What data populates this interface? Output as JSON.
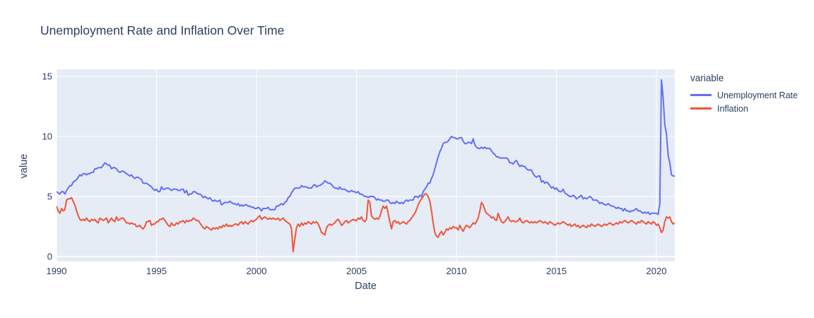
{
  "title": "Unemployment Rate and Inflation Over Time",
  "x_axis": {
    "title": "Date",
    "ticks": [
      1990,
      1995,
      2000,
      2005,
      2010,
      2015,
      2020
    ]
  },
  "y_axis": {
    "title": "value",
    "ticks": [
      0,
      5,
      10,
      15
    ]
  },
  "legend": {
    "title": "variable",
    "entries": [
      {
        "label": "Unemployment Rate",
        "color": "#636EFA"
      },
      {
        "label": "Inflation",
        "color": "#EF553B"
      }
    ]
  },
  "style": {
    "plot_bg": "#E5ECF6",
    "grid_color": "#FFFFFF",
    "text_color": "#2a3f5f",
    "paper_bg": "#FFFFFF"
  },
  "chart_data": {
    "type": "line",
    "title": "Unemployment Rate and Inflation Over Time",
    "xlabel": "Date",
    "ylabel": "value",
    "x_start_year": 1990,
    "x_interval": "monthly",
    "x_end": "2020-12",
    "xlim": [
      1990,
      2020.917
    ],
    "ylim": [
      -0.41,
      15.59
    ],
    "grid": true,
    "legend_position": "right",
    "series": [
      {
        "name": "Unemployment Rate",
        "color": "#636EFA",
        "values": [
          5.4,
          5.3,
          5.2,
          5.4,
          5.4,
          5.2,
          5.5,
          5.7,
          5.9,
          5.9,
          6.2,
          6.3,
          6.4,
          6.6,
          6.8,
          6.7,
          6.9,
          6.9,
          6.8,
          6.9,
          6.9,
          7.0,
          7.0,
          7.3,
          7.3,
          7.4,
          7.4,
          7.4,
          7.6,
          7.8,
          7.7,
          7.6,
          7.6,
          7.3,
          7.4,
          7.4,
          7.3,
          7.1,
          7.0,
          7.1,
          7.1,
          7.0,
          6.9,
          6.8,
          6.7,
          6.8,
          6.6,
          6.5,
          6.6,
          6.6,
          6.5,
          6.4,
          6.1,
          6.1,
          6.1,
          6.0,
          5.9,
          5.8,
          5.6,
          5.5,
          5.6,
          5.4,
          5.4,
          5.8,
          5.6,
          5.6,
          5.7,
          5.7,
          5.6,
          5.5,
          5.6,
          5.6,
          5.6,
          5.5,
          5.5,
          5.6,
          5.6,
          5.3,
          5.5,
          5.1,
          5.2,
          5.2,
          5.4,
          5.4,
          5.3,
          5.2,
          5.2,
          5.1,
          4.9,
          5.0,
          4.9,
          4.8,
          4.9,
          4.7,
          4.6,
          4.7,
          4.6,
          4.6,
          4.7,
          4.3,
          4.4,
          4.5,
          4.5,
          4.5,
          4.6,
          4.5,
          4.4,
          4.4,
          4.3,
          4.4,
          4.2,
          4.3,
          4.2,
          4.3,
          4.3,
          4.2,
          4.2,
          4.1,
          4.1,
          4.0,
          4.0,
          4.1,
          4.0,
          3.8,
          4.0,
          4.0,
          4.0,
          4.1,
          3.9,
          3.9,
          3.9,
          3.9,
          4.2,
          4.2,
          4.3,
          4.4,
          4.3,
          4.5,
          4.6,
          4.9,
          5.0,
          5.3,
          5.5,
          5.7,
          5.7,
          5.7,
          5.7,
          5.9,
          5.8,
          5.8,
          5.8,
          5.7,
          5.7,
          5.7,
          5.9,
          6.0,
          5.8,
          5.9,
          5.9,
          6.0,
          6.1,
          6.3,
          6.2,
          6.1,
          6.1,
          6.0,
          5.8,
          5.7,
          5.7,
          5.6,
          5.8,
          5.6,
          5.6,
          5.6,
          5.5,
          5.4,
          5.4,
          5.5,
          5.4,
          5.4,
          5.3,
          5.4,
          5.2,
          5.2,
          5.1,
          5.0,
          5.0,
          4.9,
          5.0,
          5.0,
          5.0,
          4.9,
          4.7,
          4.8,
          4.7,
          4.7,
          4.6,
          4.6,
          4.7,
          4.7,
          4.5,
          4.4,
          4.5,
          4.4,
          4.6,
          4.5,
          4.4,
          4.5,
          4.4,
          4.6,
          4.7,
          4.6,
          4.7,
          4.7,
          4.7,
          5.0,
          5.0,
          4.9,
          5.1,
          5.0,
          5.4,
          5.6,
          5.8,
          6.1,
          6.1,
          6.5,
          6.8,
          7.3,
          7.8,
          8.3,
          8.7,
          9.0,
          9.4,
          9.5,
          9.5,
          9.6,
          9.8,
          10.0,
          9.9,
          9.9,
          9.8,
          9.8,
          9.9,
          9.9,
          9.6,
          9.4,
          9.4,
          9.5,
          9.5,
          9.4,
          9.8,
          9.3,
          9.1,
          9.0,
          9.0,
          9.1,
          9.0,
          9.1,
          9.0,
          9.0,
          9.0,
          8.8,
          8.6,
          8.5,
          8.3,
          8.3,
          8.2,
          8.2,
          8.2,
          8.2,
          8.2,
          8.1,
          7.8,
          7.8,
          7.7,
          7.9,
          8.0,
          7.7,
          7.5,
          7.6,
          7.5,
          7.5,
          7.3,
          7.2,
          7.2,
          7.2,
          6.9,
          6.7,
          6.6,
          6.7,
          6.7,
          6.2,
          6.3,
          6.1,
          6.2,
          6.1,
          5.9,
          5.7,
          5.8,
          5.6,
          5.7,
          5.5,
          5.4,
          5.4,
          5.6,
          5.3,
          5.2,
          5.1,
          5.0,
          5.0,
          5.1,
          5.0,
          4.8,
          4.9,
          5.0,
          5.1,
          4.8,
          4.9,
          4.8,
          4.9,
          5.0,
          4.9,
          4.7,
          4.7,
          4.7,
          4.6,
          4.4,
          4.5,
          4.4,
          4.3,
          4.3,
          4.4,
          4.3,
          4.2,
          4.2,
          4.1,
          4.0,
          4.1,
          4.0,
          4.0,
          3.8,
          4.0,
          3.8,
          3.8,
          3.7,
          3.8,
          3.8,
          3.9,
          4.0,
          3.8,
          3.8,
          3.7,
          3.6,
          3.7,
          3.6,
          3.7,
          3.5,
          3.6,
          3.6,
          3.6,
          3.6,
          3.5,
          4.4,
          14.7,
          13.2,
          11.0,
          10.2,
          8.4,
          7.8,
          6.8,
          6.7,
          6.7
        ]
      },
      {
        "name": "Inflation",
        "color": "#EF553B",
        "values": [
          4.2,
          3.8,
          3.6,
          4.0,
          3.8,
          3.9,
          4.7,
          4.8,
          4.8,
          4.9,
          4.6,
          4.3,
          3.8,
          3.4,
          3.1,
          3.0,
          3.1,
          3.0,
          3.2,
          3.0,
          2.9,
          3.1,
          3.0,
          3.1,
          2.9,
          2.8,
          3.2,
          3.1,
          3.0,
          3.1,
          3.2,
          2.8,
          3.0,
          3.2,
          3.0,
          2.9,
          3.3,
          3.0,
          3.1,
          3.2,
          3.2,
          3.0,
          2.8,
          2.8,
          2.7,
          2.8,
          2.7,
          2.7,
          2.5,
          2.5,
          2.6,
          2.4,
          2.3,
          2.5,
          2.9,
          2.9,
          3.0,
          2.6,
          2.7,
          2.7,
          2.9,
          2.9,
          3.1,
          3.1,
          3.2,
          3.0,
          2.8,
          2.6,
          2.5,
          2.8,
          2.6,
          2.6,
          2.8,
          2.7,
          2.9,
          2.9,
          3.0,
          2.8,
          3.0,
          2.9,
          3.0,
          3.0,
          3.2,
          3.1,
          3.0,
          3.0,
          2.8,
          2.6,
          2.4,
          2.3,
          2.5,
          2.4,
          2.3,
          2.2,
          2.4,
          2.3,
          2.4,
          2.3,
          2.5,
          2.4,
          2.6,
          2.5,
          2.7,
          2.5,
          2.6,
          2.5,
          2.6,
          2.7,
          2.7,
          2.6,
          2.8,
          2.9,
          2.7,
          2.9,
          2.8,
          2.7,
          2.9,
          3.0,
          2.9,
          3.0,
          3.1,
          3.3,
          3.4,
          3.1,
          3.2,
          3.3,
          3.2,
          3.1,
          3.2,
          3.1,
          3.2,
          3.1,
          3.1,
          3.2,
          3.0,
          3.1,
          3.2,
          3.0,
          2.9,
          2.8,
          2.7,
          2.3,
          0.4,
          1.5,
          2.4,
          2.7,
          2.5,
          2.8,
          2.6,
          2.8,
          2.7,
          2.9,
          2.8,
          2.7,
          2.9,
          2.8,
          2.9,
          2.7,
          2.4,
          2.0,
          1.9,
          1.8,
          2.4,
          2.6,
          2.7,
          2.6,
          2.7,
          2.8,
          3.0,
          3.1,
          2.9,
          2.6,
          2.7,
          2.9,
          3.0,
          2.8,
          2.9,
          3.0,
          3.1,
          3.0,
          3.0,
          3.2,
          3.1,
          3.3,
          3.0,
          2.9,
          3.1,
          4.7,
          4.5,
          3.4,
          3.2,
          3.1,
          3.2,
          3.1,
          3.3,
          3.8,
          4.2,
          4.0,
          4.2,
          3.6,
          2.9,
          2.3,
          2.9,
          3.0,
          2.8,
          2.9,
          2.7,
          2.8,
          2.9,
          2.8,
          2.7,
          2.9,
          3.0,
          3.2,
          3.4,
          3.6,
          3.9,
          4.3,
          4.6,
          4.8,
          5.0,
          5.2,
          5.2,
          5.0,
          4.6,
          3.8,
          2.8,
          2.0,
          1.7,
          1.6,
          1.9,
          2.1,
          1.8,
          2.0,
          2.3,
          2.2,
          2.4,
          2.3,
          2.5,
          2.4,
          2.4,
          2.2,
          2.6,
          2.3,
          2.1,
          2.4,
          2.6,
          2.5,
          2.4,
          2.6,
          2.8,
          2.7,
          2.9,
          3.2,
          3.8,
          4.5,
          4.3,
          3.9,
          3.6,
          3.5,
          3.4,
          3.2,
          3.3,
          3.1,
          3.0,
          3.6,
          3.2,
          2.9,
          2.8,
          2.9,
          3.1,
          3.3,
          3.0,
          2.9,
          3.0,
          2.9,
          2.9,
          3.0,
          3.2,
          2.9,
          2.8,
          2.9,
          3.0,
          2.9,
          2.8,
          2.9,
          2.8,
          2.9,
          2.8,
          2.9,
          3.0,
          2.9,
          2.8,
          2.9,
          2.8,
          2.7,
          2.9,
          2.8,
          2.7,
          2.6,
          2.7,
          2.8,
          2.7,
          2.8,
          2.9,
          2.8,
          2.7,
          2.6,
          2.7,
          2.5,
          2.6,
          2.7,
          2.5,
          2.6,
          2.4,
          2.5,
          2.6,
          2.5,
          2.4,
          2.6,
          2.5,
          2.7,
          2.6,
          2.5,
          2.6,
          2.7,
          2.6,
          2.5,
          2.6,
          2.7,
          2.6,
          2.7,
          2.8,
          2.7,
          2.6,
          2.7,
          2.8,
          2.7,
          2.9,
          2.8,
          2.9,
          3.0,
          2.9,
          2.8,
          2.9,
          3.0,
          2.9,
          2.8,
          2.7,
          2.9,
          2.8,
          3.0,
          2.9,
          2.8,
          2.7,
          2.9,
          2.8,
          2.7,
          2.9,
          2.8,
          2.6,
          2.7,
          2.4,
          2.0,
          2.2,
          2.9,
          3.3,
          3.2,
          3.3,
          2.9,
          2.7,
          2.8
        ]
      }
    ]
  }
}
